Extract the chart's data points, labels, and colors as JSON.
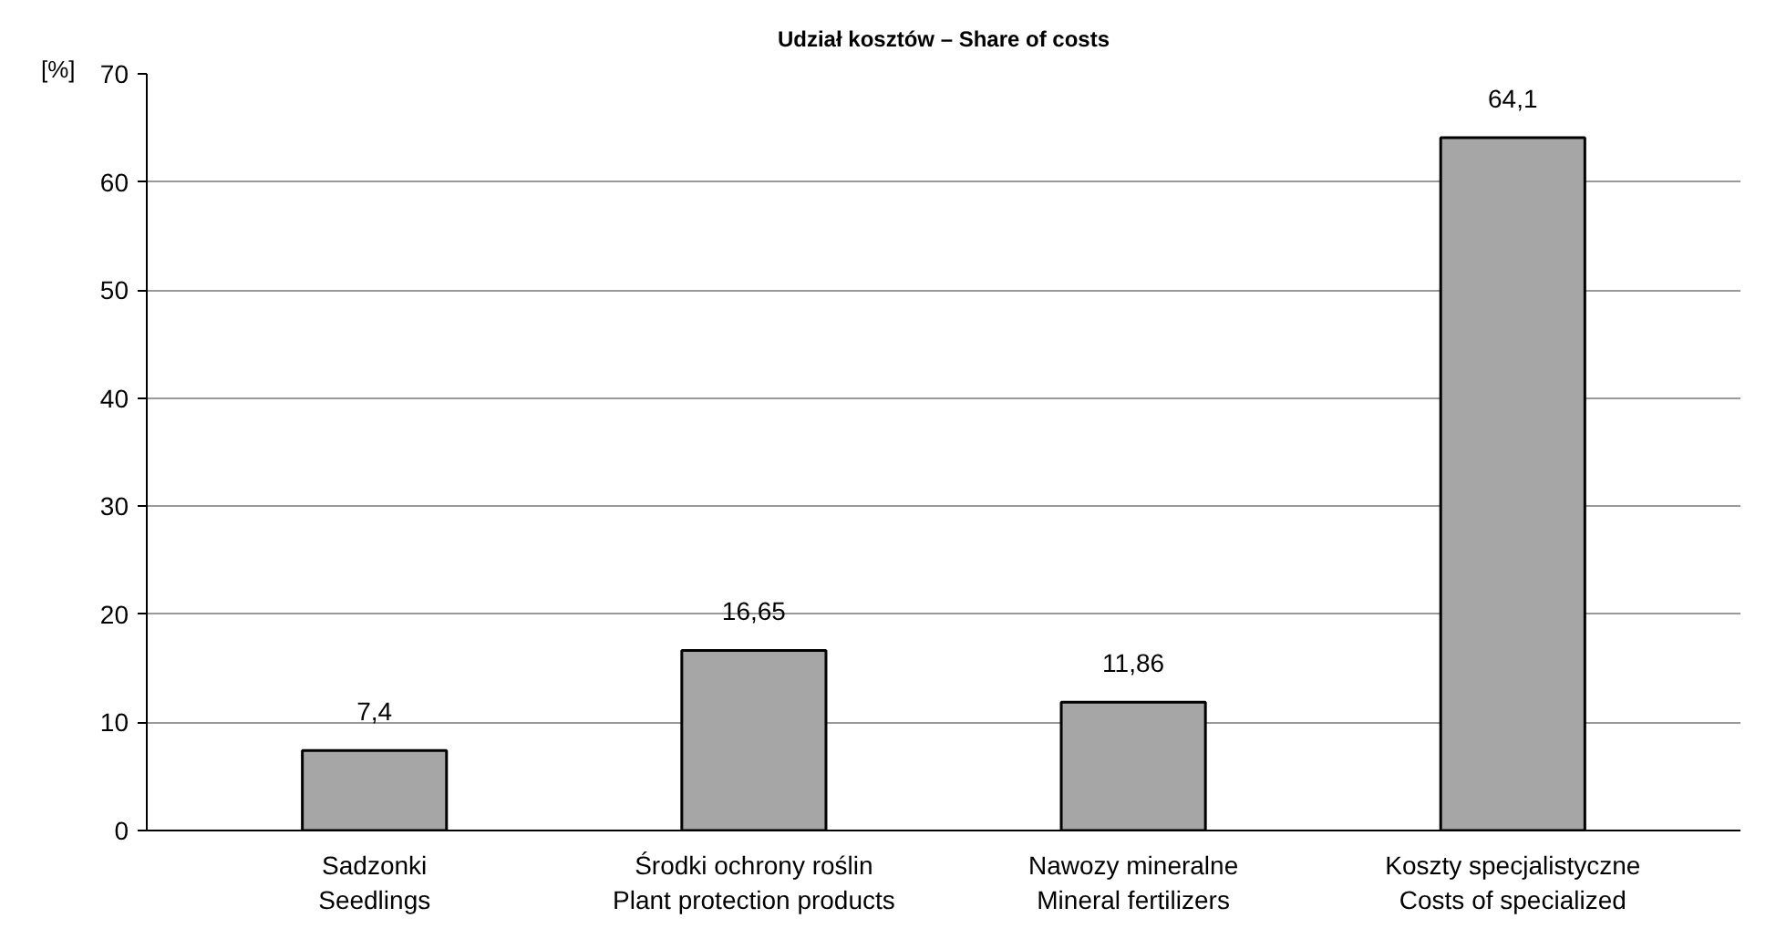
{
  "chart_data": {
    "type": "bar",
    "title": "Udział kosztów – Share of costs",
    "ylabel": "[%]",
    "categories": [
      "Sadzonki\nSeedlings",
      "Środki ochrony roślin\nPlant protection products",
      "Nawozy mineralne\nMineral fertilizers",
      "Koszty specjalistyczne\nCosts of specialized"
    ],
    "values": [
      7.4,
      16.65,
      11.86,
      64.1
    ],
    "value_labels": [
      "7,4",
      "16,65",
      "11,86",
      "64,1"
    ],
    "color": "#a6a6a6",
    "ylim": [
      0,
      70
    ],
    "yticks": [
      0,
      10,
      20,
      30,
      40,
      50,
      60,
      70
    ],
    "grid": "y"
  }
}
